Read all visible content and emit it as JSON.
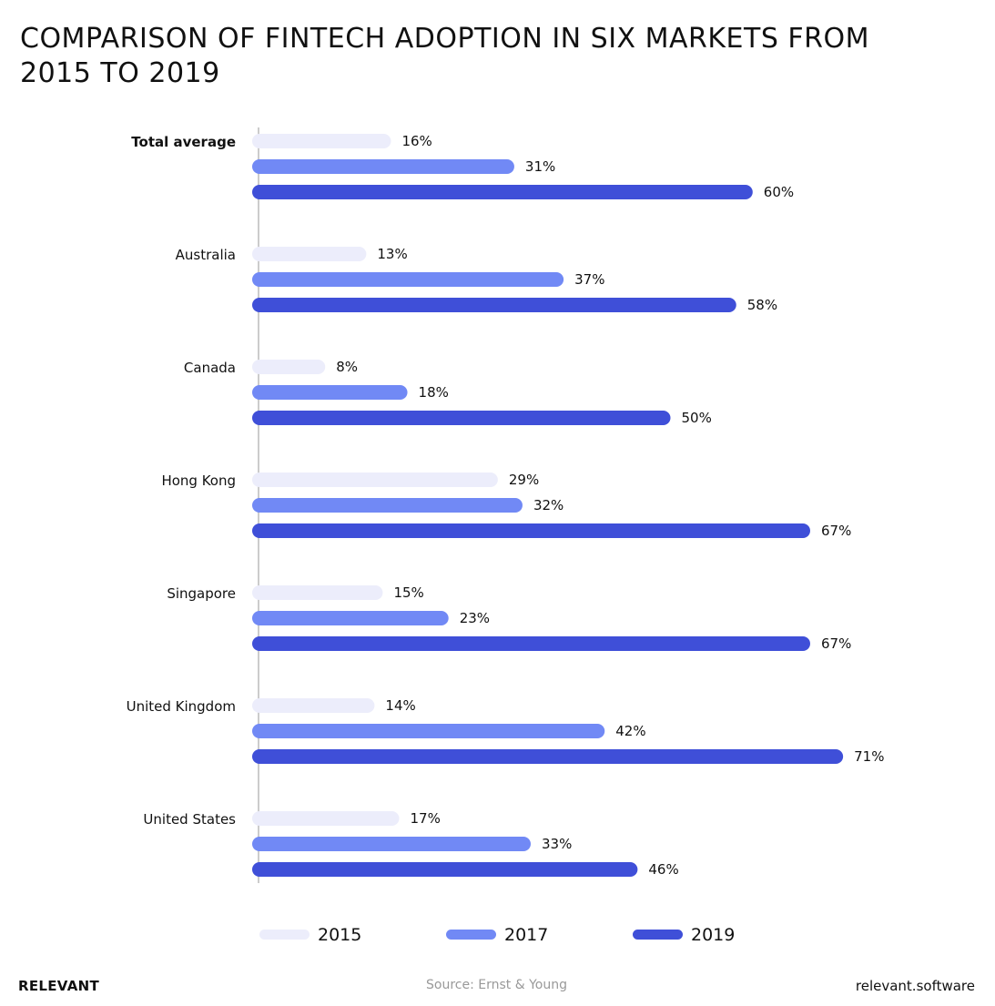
{
  "chart_data": {
    "type": "bar",
    "orientation": "horizontal",
    "title": "COMPARISON OF FINTECH ADOPTION IN SIX MARKETS FROM 2015 TO 2019",
    "categories": [
      "Total average",
      "Australia",
      "Canada",
      "Hong Kong",
      "Singapore",
      "United Kingdom",
      "United States"
    ],
    "series": [
      {
        "name": "2015",
        "color": "#ECEDFB",
        "values": [
          16,
          13,
          8,
          29,
          15,
          14,
          17
        ]
      },
      {
        "name": "2017",
        "color": "#7189F5",
        "values": [
          31,
          37,
          18,
          32,
          23,
          42,
          33
        ]
      },
      {
        "name": "2019",
        "color": "#3F4FD8",
        "values": [
          60,
          58,
          50,
          67,
          67,
          71,
          46
        ]
      }
    ],
    "value_suffix": "%",
    "xlim": [
      0,
      80
    ],
    "grid": false,
    "legend_position": "bottom"
  },
  "footer": {
    "brand": "RELEVANT",
    "source": "Source: Ernst & Young",
    "site": "relevant.software"
  }
}
